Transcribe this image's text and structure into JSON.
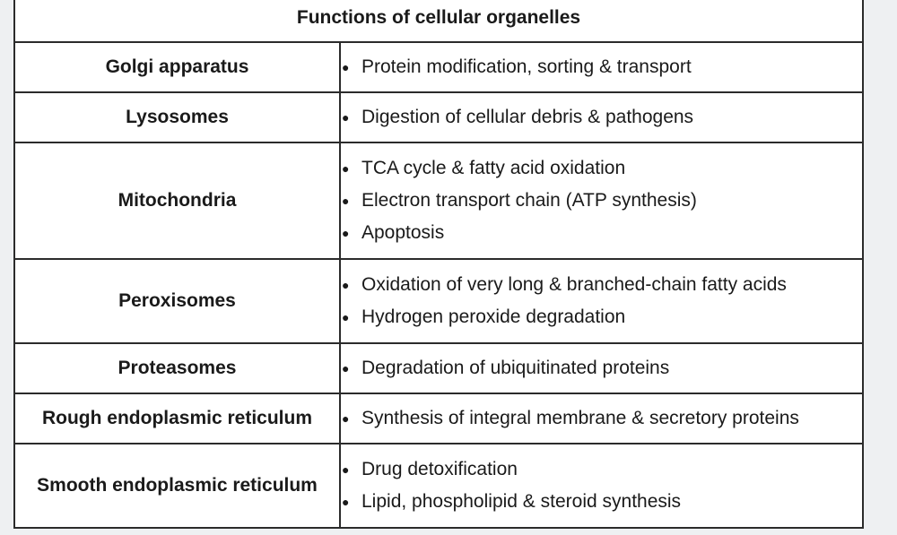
{
  "table": {
    "title": "Functions of cellular organelles",
    "rows": [
      {
        "name": "Golgi apparatus",
        "functions": [
          "Protein modification, sorting & transport"
        ]
      },
      {
        "name": "Lysosomes",
        "functions": [
          "Digestion of cellular debris & pathogens"
        ]
      },
      {
        "name": "Mitochondria",
        "functions": [
          "TCA cycle & fatty acid oxidation",
          "Electron transport chain (ATP synthesis)",
          "Apoptosis"
        ]
      },
      {
        "name": "Peroxisomes",
        "functions": [
          "Oxidation of very long & branched-chain fatty acids",
          "Hydrogen peroxide degradation"
        ]
      },
      {
        "name": "Proteasomes",
        "functions": [
          "Degradation of ubiquitinated proteins"
        ]
      },
      {
        "name": "Rough endoplasmic reticulum",
        "functions": [
          "Synthesis of integral membrane & secretory proteins"
        ]
      },
      {
        "name": "Smooth endoplasmic reticulum",
        "functions": [
          "Drug detoxification",
          "Lipid, phospholipid & steroid synthesis"
        ]
      }
    ]
  }
}
